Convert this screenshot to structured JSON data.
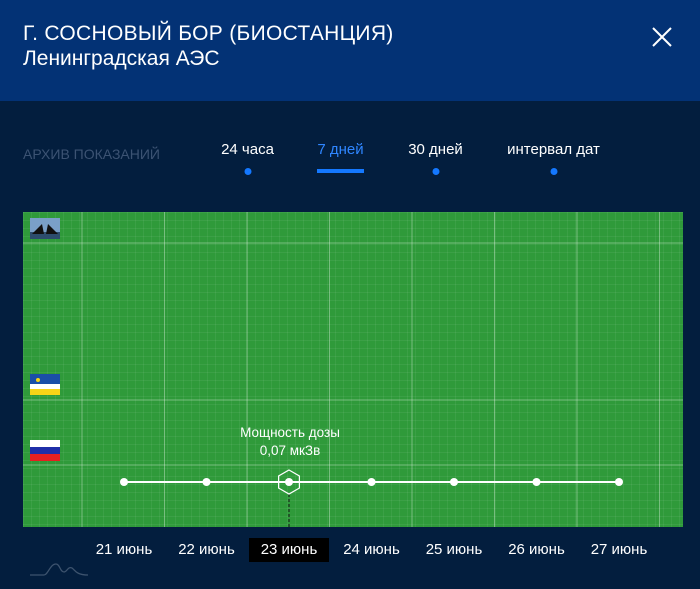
{
  "header": {
    "title": "Г. СОСНОВЫЙ БОР (БИОСТАНЦИЯ)",
    "subtitle": "Ленинградская АЭС"
  },
  "archive_label": "АРХИВ ПОКАЗАНИЙ",
  "tabs": [
    {
      "label": "24 часа"
    },
    {
      "label": "7 дней",
      "active": true
    },
    {
      "label": "30 дней"
    },
    {
      "label": "интервал дат"
    }
  ],
  "tooltip": {
    "title": "Мощность дозы",
    "value": "0,07 мкЗв"
  },
  "chart_data": {
    "type": "line",
    "title": "",
    "xlabel": "",
    "ylabel": "Мощность дозы, мкЗв",
    "categories": [
      "21 июнь",
      "22 июнь",
      "23 июнь",
      "24 июнь",
      "25 июнь",
      "26 июнь",
      "27 июнь"
    ],
    "series": [
      {
        "name": "Мощность дозы",
        "values": [
          0.07,
          0.07,
          0.07,
          0.07,
          0.07,
          0.07,
          0.07
        ]
      }
    ],
    "selected_index": 2,
    "reference_markers": [
      "saint-petersburg-bridge",
      "buryatia-flag",
      "russia-flag"
    ],
    "colors": {
      "background": "#2f9a3a",
      "line": "#ffffff"
    }
  }
}
